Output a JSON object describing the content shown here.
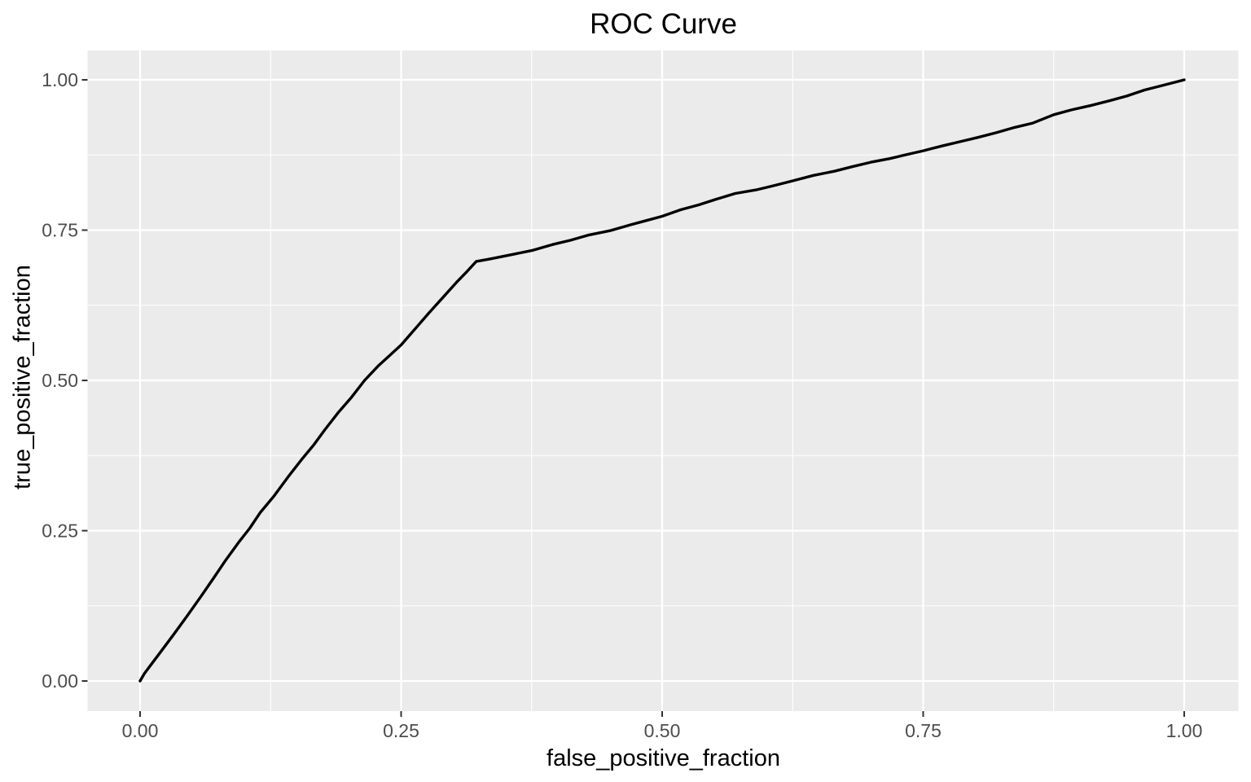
{
  "chart_data": {
    "type": "line",
    "title": "ROC Curve",
    "xlabel": "false_positive_fraction",
    "ylabel": "true_positive_fraction",
    "xlim": [
      -0.05,
      1.05
    ],
    "ylim": [
      -0.05,
      1.05
    ],
    "grid": "major+minor",
    "legend": "none",
    "x_ticks": {
      "values": [
        0,
        0.25,
        0.5,
        0.75,
        1.0
      ],
      "labels": [
        "0.00",
        "0.25",
        "0.50",
        "0.75",
        "1.00"
      ]
    },
    "y_ticks": {
      "values": [
        0,
        0.25,
        0.5,
        0.75,
        1.0
      ],
      "labels": [
        "0.00",
        "0.25",
        "0.50",
        "0.75",
        "1.00"
      ]
    },
    "x_minor_ticks": [
      0.125,
      0.375,
      0.625,
      0.875
    ],
    "y_minor_ticks": [
      0.125,
      0.375,
      0.625,
      0.875
    ],
    "theme": {
      "background": "#FFFFFF",
      "panel_bg": "#EBEBEB",
      "grid_color": "#FFFFFF",
      "line_color": "#000000",
      "tick_mark_color": "#333333",
      "tick_label_color": "#4D4D4D",
      "title_color": "#000000"
    },
    "series": [
      {
        "name": "ROC",
        "points": [
          [
            0.0,
            0.0
          ],
          [
            0.004,
            0.012
          ],
          [
            0.01,
            0.026
          ],
          [
            0.02,
            0.049
          ],
          [
            0.032,
            0.077
          ],
          [
            0.045,
            0.108
          ],
          [
            0.058,
            0.14
          ],
          [
            0.07,
            0.17
          ],
          [
            0.082,
            0.201
          ],
          [
            0.095,
            0.232
          ],
          [
            0.105,
            0.254
          ],
          [
            0.115,
            0.28
          ],
          [
            0.128,
            0.307
          ],
          [
            0.142,
            0.34
          ],
          [
            0.155,
            0.369
          ],
          [
            0.166,
            0.392
          ],
          [
            0.177,
            0.418
          ],
          [
            0.19,
            0.447
          ],
          [
            0.202,
            0.471
          ],
          [
            0.215,
            0.5
          ],
          [
            0.228,
            0.524
          ],
          [
            0.24,
            0.543
          ],
          [
            0.25,
            0.559
          ],
          [
            0.263,
            0.585
          ],
          [
            0.276,
            0.611
          ],
          [
            0.29,
            0.638
          ],
          [
            0.303,
            0.663
          ],
          [
            0.313,
            0.681
          ],
          [
            0.322,
            0.698
          ],
          [
            0.335,
            0.702
          ],
          [
            0.355,
            0.709
          ],
          [
            0.375,
            0.716
          ],
          [
            0.395,
            0.726
          ],
          [
            0.412,
            0.733
          ],
          [
            0.43,
            0.742
          ],
          [
            0.45,
            0.749
          ],
          [
            0.47,
            0.759
          ],
          [
            0.485,
            0.766
          ],
          [
            0.5,
            0.773
          ],
          [
            0.518,
            0.784
          ],
          [
            0.535,
            0.792
          ],
          [
            0.551,
            0.801
          ],
          [
            0.57,
            0.811
          ],
          [
            0.59,
            0.817
          ],
          [
            0.607,
            0.824
          ],
          [
            0.625,
            0.832
          ],
          [
            0.645,
            0.841
          ],
          [
            0.665,
            0.848
          ],
          [
            0.683,
            0.856
          ],
          [
            0.7,
            0.863
          ],
          [
            0.718,
            0.869
          ],
          [
            0.735,
            0.876
          ],
          [
            0.75,
            0.882
          ],
          [
            0.768,
            0.89
          ],
          [
            0.785,
            0.897
          ],
          [
            0.802,
            0.904
          ],
          [
            0.82,
            0.912
          ],
          [
            0.838,
            0.921
          ],
          [
            0.855,
            0.928
          ],
          [
            0.875,
            0.942
          ],
          [
            0.892,
            0.95
          ],
          [
            0.91,
            0.957
          ],
          [
            0.928,
            0.965
          ],
          [
            0.945,
            0.973
          ],
          [
            0.962,
            0.983
          ],
          [
            0.98,
            0.991
          ],
          [
            1.0,
            1.0
          ]
        ]
      }
    ]
  }
}
